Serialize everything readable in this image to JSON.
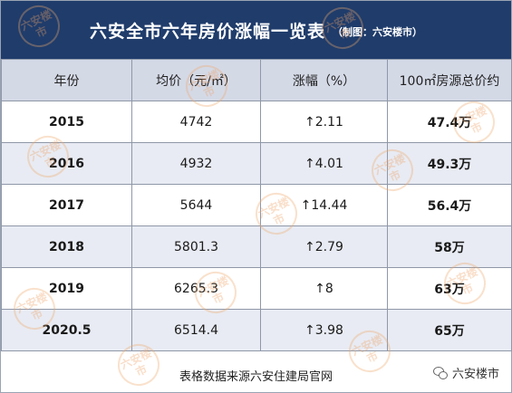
{
  "title": {
    "main": "六安全市六年房价涨幅一览表",
    "sub": "（制图：六安楼市）"
  },
  "table": {
    "headers": [
      "年份",
      "均价（元/㎡）",
      "涨幅（%）",
      "100㎡房源总价约"
    ],
    "rows": [
      {
        "year": "2015",
        "price": "4742",
        "rise": "↑2.11",
        "total": "47.4万"
      },
      {
        "year": "2016",
        "price": "4932",
        "rise": "↑4.01",
        "total": "49.3万"
      },
      {
        "year": "2017",
        "price": "5644",
        "rise": "↑14.44",
        "total": "56.4万"
      },
      {
        "year": "2018",
        "price": "5801.3",
        "rise": "↑2.79",
        "total": "58万"
      },
      {
        "year": "2019",
        "price": "6265.3",
        "rise": "↑8",
        "total": "63万"
      },
      {
        "year": "2020.5",
        "price": "6514.4",
        "rise": "↑3.98",
        "total": "65万"
      }
    ]
  },
  "footer": {
    "source": "表格数据来源六安住建局官网",
    "brand": "六安楼市",
    "brand_icon": "wechat-icon"
  },
  "watermark": {
    "text": "六安楼市"
  },
  "colors": {
    "header_bg": "#1f3c6b",
    "total_text": "#d8101a",
    "col_header_bg": "#d4d9e6"
  }
}
